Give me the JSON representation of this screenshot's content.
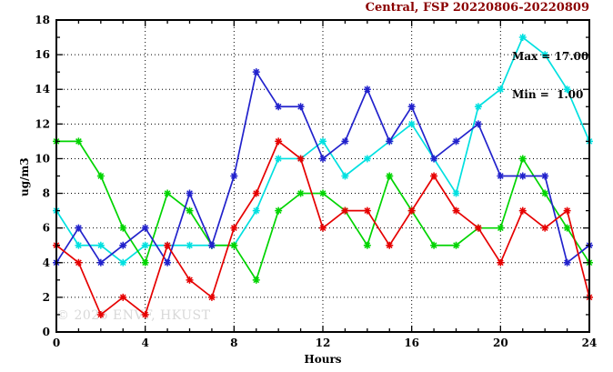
{
  "chart": {
    "title": "Central, FSP 20220806-20220809",
    "title_color": "#8b0000",
    "annotations": {
      "max_label": "Max = 17.00",
      "min_label": "Min =  1.00"
    },
    "watermark": "© 2026 ENVF, HKUST",
    "xlabel": "Hours",
    "ylabel": "ug/m3"
  },
  "chart_data": {
    "type": "line",
    "title": "Central, FSP 20220806-20220809",
    "xlabel": "Hours",
    "ylabel": "ug/m3",
    "xlim": [
      0,
      24
    ],
    "ylim": [
      0,
      18
    ],
    "x_ticks": [
      0,
      4,
      8,
      12,
      16,
      20,
      24
    ],
    "y_ticks": [
      0,
      2,
      4,
      6,
      8,
      10,
      12,
      14,
      16,
      18
    ],
    "grid": true,
    "legend": "none",
    "marker": "asterisk",
    "x": [
      0,
      1,
      2,
      3,
      4,
      5,
      6,
      7,
      8,
      9,
      10,
      11,
      12,
      13,
      14,
      15,
      16,
      17,
      18,
      19,
      20,
      21,
      22,
      23,
      24
    ],
    "series": [
      {
        "name": "cyan",
        "color": "#00e0e0",
        "values": [
          7,
          5,
          5,
          4,
          5,
          5,
          5,
          5,
          5,
          7,
          10,
          10,
          11,
          9,
          10,
          11,
          12,
          10,
          8,
          13,
          14,
          17,
          16,
          14,
          11
        ]
      },
      {
        "name": "green",
        "color": "#00d400",
        "values": [
          11,
          11,
          9,
          6,
          4,
          8,
          7,
          5,
          5,
          3,
          7,
          8,
          8,
          7,
          5,
          9,
          7,
          5,
          5,
          6,
          6,
          10,
          8,
          6,
          4
        ]
      },
      {
        "name": "blue",
        "color": "#2222cc",
        "values": [
          4,
          6,
          4,
          5,
          6,
          4,
          8,
          5,
          9,
          15,
          13,
          13,
          10,
          11,
          14,
          11,
          13,
          10,
          11,
          12,
          9,
          9,
          9,
          4,
          5
        ]
      },
      {
        "name": "red",
        "color": "#e60000",
        "values": [
          5,
          4,
          1,
          2,
          1,
          5,
          3,
          2,
          6,
          8,
          11,
          10,
          6,
          7,
          7,
          5,
          7,
          9,
          7,
          6,
          4,
          7,
          6,
          7,
          2
        ]
      }
    ],
    "annotations": {
      "max": 17.0,
      "min": 1.0
    }
  }
}
